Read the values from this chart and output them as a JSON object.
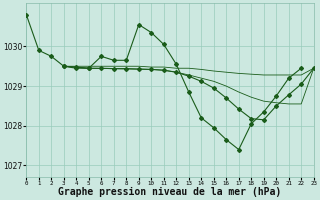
{
  "background_color": "#cce8e0",
  "plot_bg_color": "#cce8e0",
  "grid_color": "#99ccbb",
  "line_color": "#1a5c1a",
  "xlabel": "Graphe pression niveau de la mer (hPa)",
  "xlabel_fontsize": 7,
  "yticks": [
    1027,
    1028,
    1029,
    1030
  ],
  "xticks": [
    0,
    1,
    2,
    3,
    4,
    5,
    6,
    7,
    8,
    9,
    10,
    11,
    12,
    13,
    14,
    15,
    16,
    17,
    18,
    19,
    20,
    21,
    22,
    23
  ],
  "xlim": [
    0,
    23
  ],
  "ylim": [
    1026.7,
    1031.1
  ],
  "curve1_x": [
    0,
    1,
    2,
    3,
    4,
    5,
    6,
    7,
    8,
    9,
    10,
    11,
    12,
    13,
    14,
    15,
    16,
    17,
    18,
    19,
    20,
    21,
    22
  ],
  "curve1_y": [
    1030.8,
    1029.9,
    1029.75,
    1029.5,
    1029.45,
    1029.45,
    1029.75,
    1029.65,
    1029.65,
    1030.55,
    1030.35,
    1030.05,
    1029.55,
    1028.85,
    1028.2,
    1027.95,
    1027.65,
    1027.4,
    1028.05,
    1028.35,
    1028.75,
    1029.2,
    1029.45
  ],
  "curve2_x": [
    3,
    4,
    5,
    6,
    7,
    8,
    9,
    10,
    11,
    12,
    13,
    14,
    15,
    16,
    17,
    18,
    19,
    20,
    21,
    22,
    23
  ],
  "curve2_y": [
    1029.5,
    1029.5,
    1029.5,
    1029.5,
    1029.5,
    1029.5,
    1029.5,
    1029.48,
    1029.48,
    1029.45,
    1029.45,
    1029.42,
    1029.38,
    1029.35,
    1029.32,
    1029.3,
    1029.28,
    1029.28,
    1029.28,
    1029.28,
    1029.45
  ],
  "curve3_x": [
    3,
    5,
    10,
    11,
    12,
    13,
    14,
    15,
    16,
    17,
    18,
    19,
    20,
    21,
    22,
    23
  ],
  "curve3_y": [
    1029.5,
    1029.45,
    1029.42,
    1029.4,
    1029.35,
    1029.28,
    1029.2,
    1029.12,
    1029.0,
    1028.85,
    1028.72,
    1028.62,
    1028.58,
    1028.55,
    1028.55,
    1029.45
  ],
  "curve4_x": [
    3,
    4,
    5,
    6,
    7,
    8,
    9,
    10,
    11,
    12,
    13,
    14,
    15,
    16,
    17,
    18,
    19,
    20,
    21,
    22,
    23
  ],
  "curve4_y": [
    1029.5,
    1029.48,
    1029.45,
    1029.45,
    1029.44,
    1029.44,
    1029.43,
    1029.42,
    1029.4,
    1029.35,
    1029.25,
    1029.12,
    1028.95,
    1028.7,
    1028.42,
    1028.18,
    1028.15,
    1028.5,
    1028.78,
    1029.05,
    1029.45
  ]
}
